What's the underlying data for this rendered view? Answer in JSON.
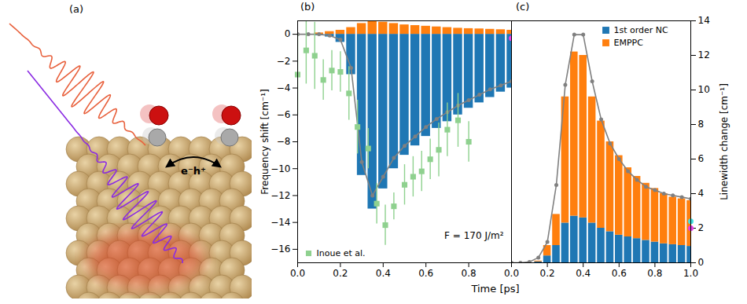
{
  "panel_a": {
    "panel_label": "(a)",
    "annotation": "e⁻h⁺"
  },
  "x_label": "Time [ps]",
  "chart_data": [
    {
      "type": "bar",
      "panel_label": "(b)",
      "stacked": true,
      "y_label": "Frequency shift [cm⁻¹]",
      "xlim": [
        0,
        1
      ],
      "xticks": [
        {
          "value": 0,
          "label": "0.0"
        },
        {
          "value": 0.2,
          "label": "0.2"
        },
        {
          "value": 0.4,
          "label": "0.4"
        },
        {
          "value": 0.6,
          "label": "0.6"
        },
        {
          "value": 0.8,
          "label": "0.8"
        }
      ],
      "ylim": [
        -17,
        1
      ],
      "yticks": [
        0,
        -2,
        -4,
        -6,
        -8,
        -10,
        -12,
        -14,
        -16
      ],
      "legend": "lower left",
      "annotations": [
        {
          "text": "F = 170 J/m²"
        }
      ],
      "series": [
        {
          "type": "bar",
          "color": "#1f77b4",
          "x": [
            0.05,
            0.1,
            0.15,
            0.2,
            0.25,
            0.3,
            0.35,
            0.4,
            0.45,
            0.5,
            0.55,
            0.6,
            0.65,
            0.7,
            0.75,
            0.8,
            0.85,
            0.9,
            0.95,
            1.0
          ],
          "values": [
            0,
            -0.1,
            -0.2,
            -0.6,
            -3,
            -10.5,
            -13,
            -11.5,
            -10,
            -9,
            -8.3,
            -7.6,
            -7,
            -6.5,
            -6,
            -5.5,
            -5.1,
            -4.7,
            -4.3,
            -4
          ]
        },
        {
          "type": "bar",
          "color": "#ff7f0e",
          "x": [
            0.05,
            0.1,
            0.15,
            0.2,
            0.25,
            0.3,
            0.35,
            0.4,
            0.45,
            0.5,
            0.55,
            0.6,
            0.65,
            0.7,
            0.75,
            0.8,
            0.85,
            0.9,
            0.95,
            1.0
          ],
          "values": [
            0,
            0.1,
            0.2,
            0.3,
            0.5,
            0.8,
            1.0,
            0.9,
            0.8,
            0.7,
            0.65,
            0.6,
            0.55,
            0.5,
            0.45,
            0.42,
            0.4,
            0.37,
            0.34,
            0.3
          ]
        },
        {
          "type": "line",
          "color": "#808080",
          "marker": "circle",
          "x": [
            0,
            0.05,
            0.1,
            0.15,
            0.2,
            0.25,
            0.3,
            0.35,
            0.4,
            0.45,
            0.5,
            0.55,
            0.6,
            0.65,
            0.7,
            0.75,
            0.8,
            0.85,
            0.9,
            0.95,
            1.0
          ],
          "values": [
            0,
            0,
            0,
            -0.1,
            -0.4,
            -2.5,
            -9.5,
            -12,
            -10.6,
            -9.2,
            -8.3,
            -7.6,
            -6.9,
            -6.3,
            -5.8,
            -5.3,
            -4.9,
            -4.5,
            -4.1,
            -3.8,
            -3.5
          ]
        },
        {
          "name": "Inoue et al.",
          "type": "scatter",
          "color": "#8fd18f",
          "marker": "square",
          "x": [
            0.0,
            0.04,
            0.08,
            0.12,
            0.16,
            0.2,
            0.24,
            0.28,
            0.33,
            0.37,
            0.41,
            0.45,
            0.5,
            0.54,
            0.58,
            0.62,
            0.66,
            0.7,
            0.75,
            0.8
          ],
          "values": [
            -3,
            -1.2,
            -1.6,
            -3.4,
            -2.7,
            -2.8,
            -4.4,
            -6.9,
            -8.5,
            -12.6,
            -14.2,
            -12.8,
            -11.2,
            -10.6,
            -10.2,
            -9.3,
            -8.6,
            -7.1,
            -6.4,
            -8.0
          ],
          "errors": [
            3,
            2.5,
            2.5,
            1.5,
            1.5,
            1.5,
            2,
            2,
            1.5,
            1.5,
            1.5,
            1,
            1.5,
            1.5,
            1.5,
            1.5,
            2,
            2,
            2,
            1.5
          ]
        },
        {
          "type": "scatter",
          "color": "#e83be8",
          "marker": "circle",
          "x": [
            1.0
          ],
          "values": [
            -0.3
          ]
        }
      ]
    },
    {
      "type": "bar",
      "panel_label": "(c)",
      "stacked": true,
      "y2_label": "Linewidth change [cm⁻¹]",
      "xlim": [
        0,
        1
      ],
      "xticks": [
        {
          "value": 0,
          "label": "0.0"
        },
        {
          "value": 0.2,
          "label": "0.2"
        },
        {
          "value": 0.4,
          "label": "0.4"
        },
        {
          "value": 0.6,
          "label": "0.6"
        },
        {
          "value": 0.8,
          "label": "0.8"
        },
        {
          "value": 1,
          "label": "1.0"
        }
      ],
      "y2lim": [
        0,
        14
      ],
      "y2ticks": [
        0,
        2,
        4,
        6,
        8,
        10,
        12,
        14
      ],
      "legend": "upper right",
      "series": [
        {
          "name": "1st order NC",
          "type": "bar",
          "color": "#1f77b4",
          "axis": "y2",
          "x": [
            0.05,
            0.1,
            0.15,
            0.2,
            0.25,
            0.3,
            0.35,
            0.4,
            0.45,
            0.5,
            0.55,
            0.6,
            0.65,
            0.7,
            0.75,
            0.8,
            0.85,
            0.9,
            0.95,
            1.0
          ],
          "values": [
            0,
            0,
            0.05,
            0.4,
            1.0,
            2.3,
            2.7,
            2.6,
            2.3,
            2.0,
            1.8,
            1.6,
            1.5,
            1.4,
            1.3,
            1.2,
            1.1,
            1.05,
            1.0,
            0.95
          ]
        },
        {
          "name": "EMPPC",
          "type": "bar",
          "color": "#ff7f0e",
          "axis": "y2",
          "x": [
            0.05,
            0.1,
            0.15,
            0.2,
            0.25,
            0.3,
            0.35,
            0.4,
            0.45,
            0.5,
            0.55,
            0.6,
            0.65,
            0.7,
            0.75,
            0.8,
            0.85,
            0.9,
            0.95,
            1.0
          ],
          "values": [
            0,
            0,
            0.05,
            0.6,
            1.8,
            7.3,
            9.5,
            9.4,
            7.3,
            6.2,
            5.2,
            4.6,
            4.0,
            3.6,
            3.3,
            3.1,
            2.9,
            2.75,
            2.7,
            2.65
          ]
        },
        {
          "type": "line",
          "color": "#808080",
          "marker": "circle",
          "axis": "y2",
          "x": [
            0,
            0.05,
            0.1,
            0.15,
            0.2,
            0.25,
            0.3,
            0.35,
            0.4,
            0.45,
            0.5,
            0.55,
            0.6,
            0.65,
            0.7,
            0.75,
            0.8,
            0.85,
            0.9,
            0.95,
            1.0
          ],
          "values": [
            0,
            0,
            0.05,
            0.3,
            1.2,
            4.5,
            10.3,
            13.2,
            13.2,
            10.5,
            8.3,
            6.9,
            6.0,
            5.3,
            4.8,
            4.4,
            4.2,
            4.0,
            3.9,
            3.8,
            3.7
          ]
        },
        {
          "type": "scatter",
          "color": "#40e0e0",
          "marker": "circle",
          "axis": "y2",
          "x": [
            1.0
          ],
          "values": [
            2.4
          ]
        },
        {
          "type": "scatter",
          "color": "#e83be8",
          "marker": "circle",
          "axis": "y2",
          "x": [
            1.0
          ],
          "values": [
            2.0
          ]
        }
      ]
    }
  ]
}
